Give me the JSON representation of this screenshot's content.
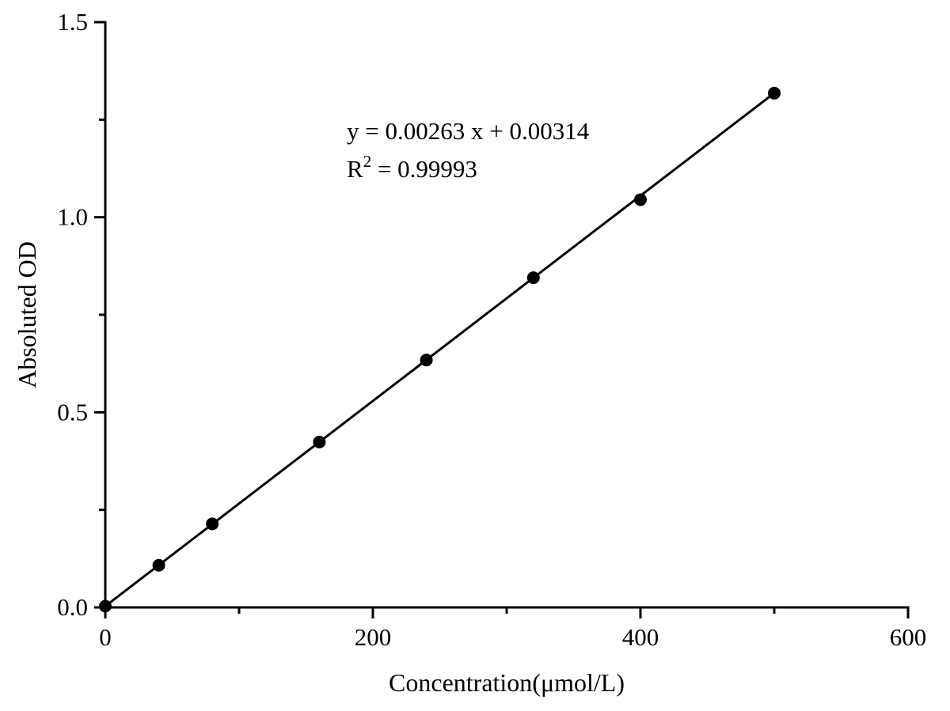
{
  "figure": {
    "background_color": "#ffffff"
  },
  "chart_data": {
    "type": "scatter",
    "title": "",
    "xlabel": "Concentration(μmol/L)",
    "ylabel": "Absoluted OD",
    "xlim": [
      0,
      600
    ],
    "ylim": [
      0,
      1.5
    ],
    "grid": false,
    "legend": false,
    "x": [
      0,
      40,
      80,
      160,
      240,
      320,
      400,
      500
    ],
    "y": [
      0.003,
      0.108,
      0.214,
      0.424,
      0.634,
      0.845,
      1.045,
      1.318
    ],
    "fit": {
      "slope": 0.00263,
      "intercept": 0.00314,
      "r_squared": 0.99993,
      "x_start": 0,
      "x_end": 500
    },
    "x_major_ticks": [
      0,
      200,
      400,
      600
    ],
    "x_tick_labels": [
      "0",
      "200",
      "400",
      "600"
    ],
    "x_minor_ticks": [
      100,
      300,
      500
    ],
    "y_major_ticks": [
      0,
      0.5,
      1.0,
      1.5
    ],
    "y_tick_labels": [
      "0.0",
      "0.5",
      "1.0",
      "1.5"
    ],
    "y_minor_ticks": [
      0.25,
      0.75,
      1.25
    ],
    "annotation": {
      "line1": "y = 0.00263 x + 0.00314",
      "line2_parts": [
        {
          "text": "R",
          "superscript": false
        },
        {
          "text": "2",
          "superscript": true
        },
        {
          "text": " = 0.99993",
          "superscript": false
        }
      ]
    },
    "colors": {
      "axis": "#000000",
      "line": "#000000",
      "marker": "#000000",
      "text": "#000000",
      "background": "#ffffff"
    }
  }
}
